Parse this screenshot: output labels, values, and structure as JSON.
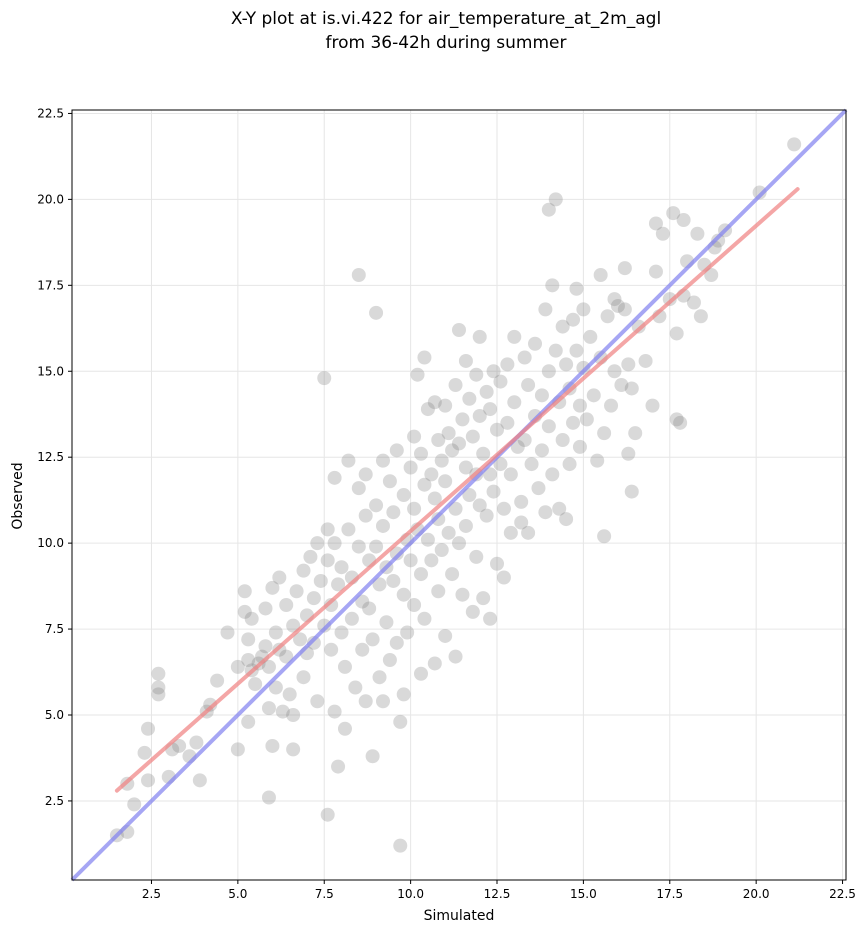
{
  "chart_data": {
    "type": "scatter",
    "title_line1": "X-Y plot at is.vi.422 for air_temperature_at_2m_agl",
    "title_line2": "from 36-42h during summer",
    "xlabel": "Simulated",
    "ylabel": "Observed",
    "xlim": [
      0.2,
      22.6
    ],
    "ylim": [
      0.2,
      22.6
    ],
    "xticks": [
      "2.5",
      "5.0",
      "7.5",
      "10.0",
      "12.5",
      "15.0",
      "17.5",
      "20.0",
      "22.5"
    ],
    "yticks": [
      "2.5",
      "5.0",
      "7.5",
      "10.0",
      "12.5",
      "15.0",
      "17.5",
      "20.0",
      "22.5"
    ],
    "grid": true,
    "colors": {
      "points": "#808080",
      "fit_line": "#f08080",
      "identity_line": "#8080f0"
    },
    "fit_line": {
      "x": [
        1.5,
        21.2
      ],
      "y": [
        2.8,
        20.3
      ]
    },
    "identity_line": {
      "x": [
        0.2,
        22.6
      ],
      "y": [
        0.2,
        22.6
      ]
    },
    "points": [
      [
        1.5,
        1.5
      ],
      [
        1.8,
        1.6
      ],
      [
        1.8,
        3.0
      ],
      [
        2.0,
        2.4
      ],
      [
        2.3,
        3.9
      ],
      [
        2.4,
        4.6
      ],
      [
        2.4,
        3.1
      ],
      [
        2.7,
        6.2
      ],
      [
        2.7,
        5.8
      ],
      [
        2.7,
        5.6
      ],
      [
        3.0,
        3.2
      ],
      [
        3.1,
        4.0
      ],
      [
        3.3,
        4.1
      ],
      [
        3.6,
        3.8
      ],
      [
        3.8,
        4.2
      ],
      [
        3.9,
        3.1
      ],
      [
        4.1,
        5.1
      ],
      [
        4.2,
        5.3
      ],
      [
        4.4,
        6.0
      ],
      [
        4.7,
        7.4
      ],
      [
        5.0,
        4.0
      ],
      [
        5.0,
        6.4
      ],
      [
        5.2,
        8.0
      ],
      [
        5.2,
        8.6
      ],
      [
        5.3,
        7.2
      ],
      [
        5.3,
        6.6
      ],
      [
        5.3,
        4.8
      ],
      [
        5.4,
        7.8
      ],
      [
        5.4,
        6.3
      ],
      [
        5.5,
        5.9
      ],
      [
        5.6,
        6.5
      ],
      [
        5.7,
        6.7
      ],
      [
        5.8,
        7.0
      ],
      [
        5.8,
        8.1
      ],
      [
        5.9,
        5.2
      ],
      [
        5.9,
        6.4
      ],
      [
        5.9,
        2.6
      ],
      [
        6.0,
        4.1
      ],
      [
        6.0,
        8.7
      ],
      [
        6.1,
        7.4
      ],
      [
        6.1,
        5.8
      ],
      [
        6.2,
        9.0
      ],
      [
        6.2,
        6.9
      ],
      [
        6.3,
        5.1
      ],
      [
        6.4,
        8.2
      ],
      [
        6.4,
        6.7
      ],
      [
        6.5,
        5.6
      ],
      [
        6.6,
        7.6
      ],
      [
        6.6,
        5.0
      ],
      [
        6.6,
        4.0
      ],
      [
        6.7,
        8.6
      ],
      [
        6.8,
        7.2
      ],
      [
        6.9,
        9.2
      ],
      [
        6.9,
        6.1
      ],
      [
        7.0,
        7.9
      ],
      [
        7.0,
        6.8
      ],
      [
        7.1,
        9.6
      ],
      [
        7.2,
        8.4
      ],
      [
        7.2,
        7.1
      ],
      [
        7.3,
        10.0
      ],
      [
        7.3,
        5.4
      ],
      [
        7.4,
        8.9
      ],
      [
        7.5,
        7.6
      ],
      [
        7.5,
        14.8
      ],
      [
        7.6,
        10.4
      ],
      [
        7.6,
        9.5
      ],
      [
        7.6,
        2.1
      ],
      [
        7.7,
        8.2
      ],
      [
        7.7,
        6.9
      ],
      [
        7.8,
        11.9
      ],
      [
        7.8,
        10.0
      ],
      [
        7.8,
        5.1
      ],
      [
        7.9,
        8.8
      ],
      [
        7.9,
        3.5
      ],
      [
        8.0,
        9.3
      ],
      [
        8.0,
        7.4
      ],
      [
        8.1,
        6.4
      ],
      [
        8.1,
        4.6
      ],
      [
        8.2,
        12.4
      ],
      [
        8.2,
        10.4
      ],
      [
        8.3,
        9.0
      ],
      [
        8.3,
        7.8
      ],
      [
        8.4,
        5.8
      ],
      [
        8.5,
        17.8
      ],
      [
        8.5,
        11.6
      ],
      [
        8.5,
        9.9
      ],
      [
        8.6,
        8.3
      ],
      [
        8.6,
        6.9
      ],
      [
        8.7,
        12.0
      ],
      [
        8.7,
        10.8
      ],
      [
        8.7,
        5.4
      ],
      [
        8.8,
        9.5
      ],
      [
        8.8,
        8.1
      ],
      [
        8.9,
        7.2
      ],
      [
        8.9,
        3.8
      ],
      [
        9.0,
        16.7
      ],
      [
        9.0,
        11.1
      ],
      [
        9.0,
        9.9
      ],
      [
        9.1,
        8.8
      ],
      [
        9.1,
        6.1
      ],
      [
        9.2,
        12.4
      ],
      [
        9.2,
        10.5
      ],
      [
        9.2,
        5.4
      ],
      [
        9.3,
        9.3
      ],
      [
        9.3,
        7.7
      ],
      [
        9.4,
        11.8
      ],
      [
        9.4,
        6.6
      ],
      [
        9.5,
        10.9
      ],
      [
        9.5,
        8.9
      ],
      [
        9.6,
        12.7
      ],
      [
        9.6,
        9.7
      ],
      [
        9.6,
        7.1
      ],
      [
        9.7,
        4.8
      ],
      [
        9.7,
        1.2
      ],
      [
        9.8,
        11.4
      ],
      [
        9.8,
        8.5
      ],
      [
        9.8,
        5.6
      ],
      [
        9.9,
        10.1
      ],
      [
        9.9,
        7.4
      ],
      [
        10.0,
        12.2
      ],
      [
        10.0,
        9.5
      ],
      [
        10.1,
        13.1
      ],
      [
        10.1,
        11.0
      ],
      [
        10.1,
        8.2
      ],
      [
        10.2,
        14.9
      ],
      [
        10.2,
        10.4
      ],
      [
        10.3,
        12.6
      ],
      [
        10.3,
        9.1
      ],
      [
        10.3,
        6.2
      ],
      [
        10.4,
        15.4
      ],
      [
        10.4,
        11.7
      ],
      [
        10.4,
        7.8
      ],
      [
        10.5,
        13.9
      ],
      [
        10.5,
        10.1
      ],
      [
        10.6,
        12.0
      ],
      [
        10.6,
        9.5
      ],
      [
        10.7,
        14.1
      ],
      [
        10.7,
        11.3
      ],
      [
        10.7,
        6.5
      ],
      [
        10.8,
        13.0
      ],
      [
        10.8,
        10.7
      ],
      [
        10.8,
        8.6
      ],
      [
        10.9,
        12.4
      ],
      [
        10.9,
        9.8
      ],
      [
        11.0,
        14.0
      ],
      [
        11.0,
        11.8
      ],
      [
        11.0,
        7.3
      ],
      [
        11.1,
        13.2
      ],
      [
        11.1,
        10.3
      ],
      [
        11.2,
        12.7
      ],
      [
        11.2,
        9.1
      ],
      [
        11.3,
        14.6
      ],
      [
        11.3,
        11.0
      ],
      [
        11.3,
        6.7
      ],
      [
        11.4,
        16.2
      ],
      [
        11.4,
        12.9
      ],
      [
        11.4,
        10.0
      ],
      [
        11.5,
        13.6
      ],
      [
        11.5,
        8.5
      ],
      [
        11.6,
        15.3
      ],
      [
        11.6,
        12.2
      ],
      [
        11.6,
        10.5
      ],
      [
        11.7,
        14.2
      ],
      [
        11.7,
        11.4
      ],
      [
        11.8,
        13.1
      ],
      [
        11.8,
        8.0
      ],
      [
        11.9,
        14.9
      ],
      [
        11.9,
        12.0
      ],
      [
        11.9,
        9.6
      ],
      [
        12.0,
        16.0
      ],
      [
        12.0,
        13.7
      ],
      [
        12.0,
        11.1
      ],
      [
        12.1,
        12.6
      ],
      [
        12.1,
        8.4
      ],
      [
        12.2,
        14.4
      ],
      [
        12.2,
        10.8
      ],
      [
        12.3,
        13.9
      ],
      [
        12.3,
        12.0
      ],
      [
        12.3,
        7.8
      ],
      [
        12.4,
        15.0
      ],
      [
        12.4,
        11.5
      ],
      [
        12.5,
        13.3
      ],
      [
        12.5,
        9.4
      ],
      [
        12.6,
        14.7
      ],
      [
        12.6,
        12.3
      ],
      [
        12.7,
        11.0
      ],
      [
        12.7,
        9.0
      ],
      [
        12.8,
        15.2
      ],
      [
        12.8,
        13.5
      ],
      [
        12.9,
        12.0
      ],
      [
        12.9,
        10.3
      ],
      [
        13.0,
        14.1
      ],
      [
        13.0,
        16.0
      ],
      [
        13.1,
        12.8
      ],
      [
        13.2,
        11.2
      ],
      [
        13.2,
        10.6
      ],
      [
        13.3,
        15.4
      ],
      [
        13.3,
        13.0
      ],
      [
        13.4,
        14.6
      ],
      [
        13.4,
        10.3
      ],
      [
        13.5,
        12.3
      ],
      [
        13.6,
        15.8
      ],
      [
        13.6,
        13.7
      ],
      [
        13.7,
        11.6
      ],
      [
        13.8,
        14.3
      ],
      [
        13.8,
        12.7
      ],
      [
        13.9,
        16.8
      ],
      [
        13.9,
        10.9
      ],
      [
        14.0,
        19.7
      ],
      [
        14.0,
        15.0
      ],
      [
        14.0,
        13.4
      ],
      [
        14.1,
        17.5
      ],
      [
        14.1,
        12.0
      ],
      [
        14.2,
        20.0
      ],
      [
        14.2,
        15.6
      ],
      [
        14.3,
        14.1
      ],
      [
        14.3,
        11.0
      ],
      [
        14.4,
        16.3
      ],
      [
        14.4,
        13.0
      ],
      [
        14.5,
        15.2
      ],
      [
        14.5,
        10.7
      ],
      [
        14.6,
        14.5
      ],
      [
        14.6,
        12.3
      ],
      [
        14.7,
        16.5
      ],
      [
        14.7,
        13.5
      ],
      [
        14.8,
        17.4
      ],
      [
        14.8,
        15.6
      ],
      [
        14.9,
        14.0
      ],
      [
        14.9,
        12.8
      ],
      [
        15.0,
        16.8
      ],
      [
        15.0,
        15.1
      ],
      [
        15.1,
        13.6
      ],
      [
        15.2,
        16.0
      ],
      [
        15.3,
        14.3
      ],
      [
        15.4,
        12.4
      ],
      [
        15.5,
        17.8
      ],
      [
        15.5,
        15.4
      ],
      [
        15.6,
        13.2
      ],
      [
        15.6,
        10.2
      ],
      [
        15.7,
        16.6
      ],
      [
        15.8,
        14.0
      ],
      [
        15.9,
        17.1
      ],
      [
        15.9,
        15.0
      ],
      [
        16.0,
        16.9
      ],
      [
        16.1,
        14.6
      ],
      [
        16.2,
        18.0
      ],
      [
        16.2,
        16.8
      ],
      [
        16.3,
        15.2
      ],
      [
        16.3,
        12.6
      ],
      [
        16.4,
        14.5
      ],
      [
        16.4,
        11.5
      ],
      [
        16.5,
        13.2
      ],
      [
        16.6,
        16.3
      ],
      [
        16.8,
        15.3
      ],
      [
        17.0,
        14.0
      ],
      [
        17.1,
        17.9
      ],
      [
        17.1,
        19.3
      ],
      [
        17.2,
        16.6
      ],
      [
        17.3,
        19.0
      ],
      [
        17.5,
        17.1
      ],
      [
        17.6,
        19.6
      ],
      [
        17.7,
        16.1
      ],
      [
        17.7,
        13.6
      ],
      [
        17.8,
        13.5
      ],
      [
        17.9,
        19.4
      ],
      [
        17.9,
        17.2
      ],
      [
        18.0,
        18.2
      ],
      [
        18.2,
        17.0
      ],
      [
        18.3,
        19.0
      ],
      [
        18.4,
        16.6
      ],
      [
        18.5,
        18.1
      ],
      [
        18.7,
        17.8
      ],
      [
        18.8,
        18.6
      ],
      [
        18.9,
        18.8
      ],
      [
        19.1,
        19.1
      ],
      [
        20.1,
        20.2
      ],
      [
        21.1,
        21.6
      ]
    ]
  }
}
